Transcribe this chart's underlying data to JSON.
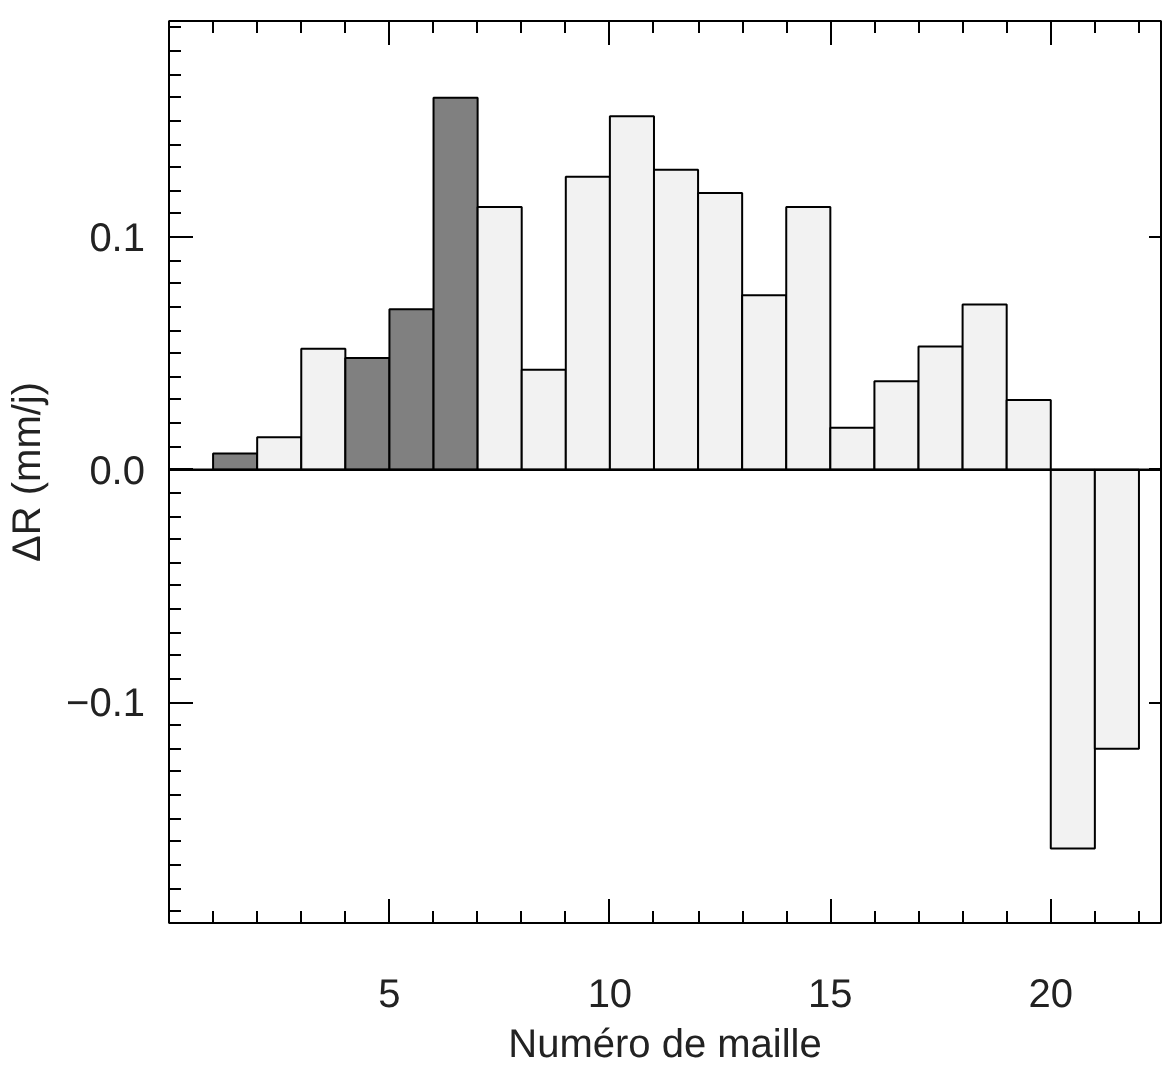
{
  "chart_data": {
    "type": "bar",
    "xlabel": "Numéro de maille",
    "ylabel": "ΔR (mm/j)",
    "x": [
      1.5,
      2.5,
      3.5,
      4.5,
      5.5,
      6.5,
      7.5,
      8.5,
      9.5,
      10.5,
      11.5,
      12.5,
      13.5,
      14.5,
      15.5,
      16.5,
      17.5,
      18.5,
      19.5,
      20.5,
      21.5
    ],
    "values": [
      0.007,
      0.014,
      0.052,
      0.048,
      0.069,
      0.16,
      0.113,
      0.043,
      0.126,
      0.152,
      0.129,
      0.119,
      0.075,
      0.113,
      0.018,
      0.038,
      0.053,
      0.071,
      0.03,
      -0.163,
      -0.12
    ],
    "colors": [
      "#808080",
      "#f2f2f2",
      "#f2f2f2",
      "#808080",
      "#808080",
      "#808080",
      "#f2f2f2",
      "#f2f2f2",
      "#f2f2f2",
      "#f2f2f2",
      "#f2f2f2",
      "#f2f2f2",
      "#f2f2f2",
      "#f2f2f2",
      "#f2f2f2",
      "#f2f2f2",
      "#f2f2f2",
      "#f2f2f2",
      "#f2f2f2",
      "#f2f2f2",
      "#f2f2f2"
    ],
    "xlim": [
      0,
      22.5
    ],
    "xticks": [
      5,
      10,
      15,
      20
    ],
    "ylim": [
      -0.195,
      0.193
    ],
    "yticks": [
      {
        "value": -0.1,
        "label": "−0.1"
      },
      {
        "value": 0,
        "label": "0.0"
      },
      0.1
    ],
    "ref_lines": [
      {
        "axis": "y",
        "value": 0,
        "color": "#000000"
      }
    ],
    "grid": false
  }
}
